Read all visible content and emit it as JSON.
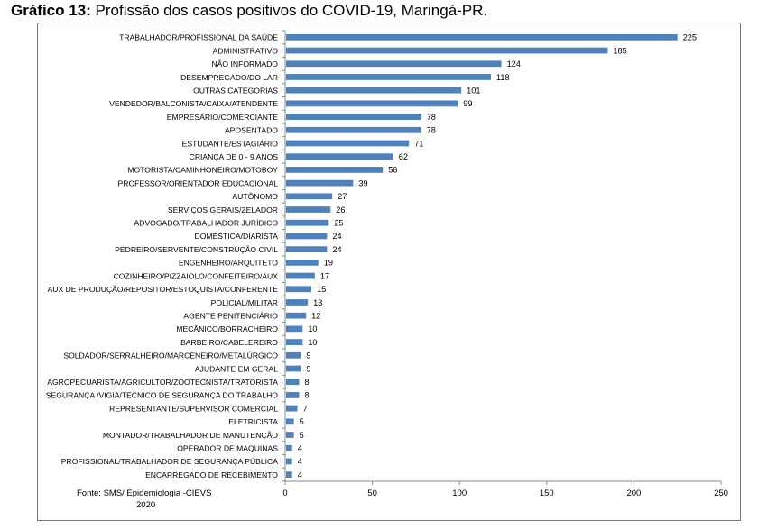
{
  "title_prefix": "Gráfico 13:",
  "title_text": " Profissão dos casos positivos do COVID-19, Maringá-PR.",
  "source_line1": "Fonte: SMS/ Epidemiologia -CIEVS",
  "source_line2": "2020",
  "chart_data": {
    "type": "bar",
    "orientation": "horizontal",
    "title": "Profissão dos casos positivos do COVID-19, Maringá-PR.",
    "xlabel": "",
    "ylabel": "",
    "xlim": [
      0,
      250
    ],
    "xticks": [
      0,
      50,
      100,
      150,
      200,
      250
    ],
    "grid": false,
    "legend": "none",
    "bar_color": "#4f81bd",
    "data_labels": true,
    "categories": [
      "TRABALHADOR/PROFISSIONAL DA SAÚDE",
      "ADMINISTRATIVO",
      "NÃO INFORMADO",
      "DESEMPREGADO/DO LAR",
      "OUTRAS CATEGORIAS",
      "VENDEDOR/BALCONISTA/CAIXA/ATENDENTE",
      "EMPRESÁRIO/COMERCIANTE",
      "APOSENTADO",
      "ESTUDANTE/ESTAGIÁRIO",
      "CRIANÇA DE 0 - 9 ANOS",
      "MOTORISTA/CAMINHONEIRO/MOTOBOY",
      "PROFESSOR/ORIENTADOR EDUCACIONAL",
      "AUTÔNOMO",
      "SERVIÇOS GERAIS/ZELADOR",
      "ADVOGADO/TRABALHADOR JURÍDICO",
      "DOMÉSTICA/DIARISTA",
      "PEDREIRO/SERVENTE/CONSTRUÇÃO CIVIL",
      "ENGENHEIRO/ARQUITETO",
      "COZINHEIRO/PIZZAIOLO/CONFEITEIRO/AUX",
      "AUX DE PRODUÇÃO/REPOSITOR/ESTOQUISTA/CONFERENTE",
      "POLICIAL/MILITAR",
      "AGENTE PENITENCIÁRIO",
      "MECÂNICO/BORRACHEIRO",
      "BARBEIRO/CABELEREIRO",
      "SOLDADOR/SERRALHEIRO/MARCENEIRO/METALÚRGICO",
      "AJUDANTE EM GERAL",
      "AGROPECUARISTA/AGRICULTOR/ZOOTECNISTA/TRATORISTA",
      "SEGURANÇA /VIGIA/TECNICO DE SEGURANÇA DO TRABALHO",
      "REPRESENTANTE/SUPERVISOR COMERCIAL",
      "ELETRICISTA",
      "MONTADOR/TRABALHADOR DE MANUTENÇÃO",
      "OPERADOR DE MAQUINAS",
      "PROFISSIONAL/TRABALHADOR DE SEGURANÇA PÚBLICA",
      "ENCARREGADO DE RECEBIMENTO"
    ],
    "values": [
      225,
      185,
      124,
      118,
      101,
      99,
      78,
      78,
      71,
      62,
      56,
      39,
      27,
      26,
      25,
      24,
      24,
      19,
      17,
      15,
      13,
      12,
      10,
      10,
      9,
      9,
      8,
      8,
      7,
      5,
      5,
      4,
      4,
      4
    ]
  }
}
